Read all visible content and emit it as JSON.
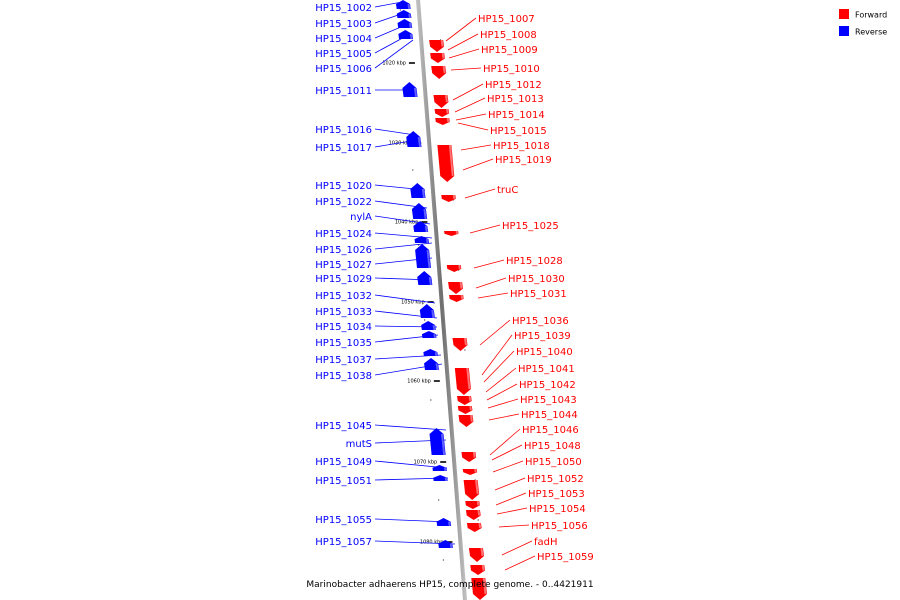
{
  "legend": {
    "forward_label": "Forward",
    "reverse_label": "Reverse",
    "forward_color": "#ff0000",
    "reverse_color": "#0000ff"
  },
  "caption": "Marinobacter adhaerens HP15, complete genome. - 0..4421911",
  "chart_data": {
    "type": "linear-genome-map",
    "strands": {
      "forward": "#ff0000",
      "reverse": "#0000ff"
    },
    "ruler_ticks": [
      "1020 kbp",
      "1030 kbp",
      "1040 kbp",
      "1050 kbp",
      "1060 kbp",
      "1070 kbp",
      "1080 kbp"
    ],
    "reverse_genes": [
      "HP15_1002",
      "HP15_1003",
      "HP15_1004",
      "HP15_1005",
      "HP15_1006",
      "HP15_1011",
      "HP15_1016",
      "HP15_1017",
      "HP15_1020",
      "HP15_1022",
      "nylA",
      "HP15_1024",
      "HP15_1026",
      "HP15_1027",
      "HP15_1029",
      "HP15_1032",
      "HP15_1033",
      "HP15_1034",
      "HP15_1035",
      "HP15_1037",
      "HP15_1038",
      "HP15_1045",
      "mutS",
      "HP15_1049",
      "HP15_1051",
      "HP15_1055",
      "HP15_1057"
    ],
    "forward_genes": [
      "HP15_1007",
      "HP15_1008",
      "HP15_1009",
      "HP15_1010",
      "HP15_1012",
      "HP15_1013",
      "HP15_1014",
      "HP15_1015",
      "HP15_1018",
      "HP15_1019",
      "truC",
      "HP15_1025",
      "HP15_1028",
      "HP15_1030",
      "HP15_1031",
      "HP15_1036",
      "HP15_1039",
      "HP15_1040",
      "HP15_1041",
      "HP15_1042",
      "HP15_1043",
      "HP15_1044",
      "HP15_1046",
      "HP15_1048",
      "HP15_1050",
      "HP15_1052",
      "HP15_1053",
      "HP15_1054",
      "HP15_1056",
      "fadH",
      "HP15_1059"
    ]
  }
}
